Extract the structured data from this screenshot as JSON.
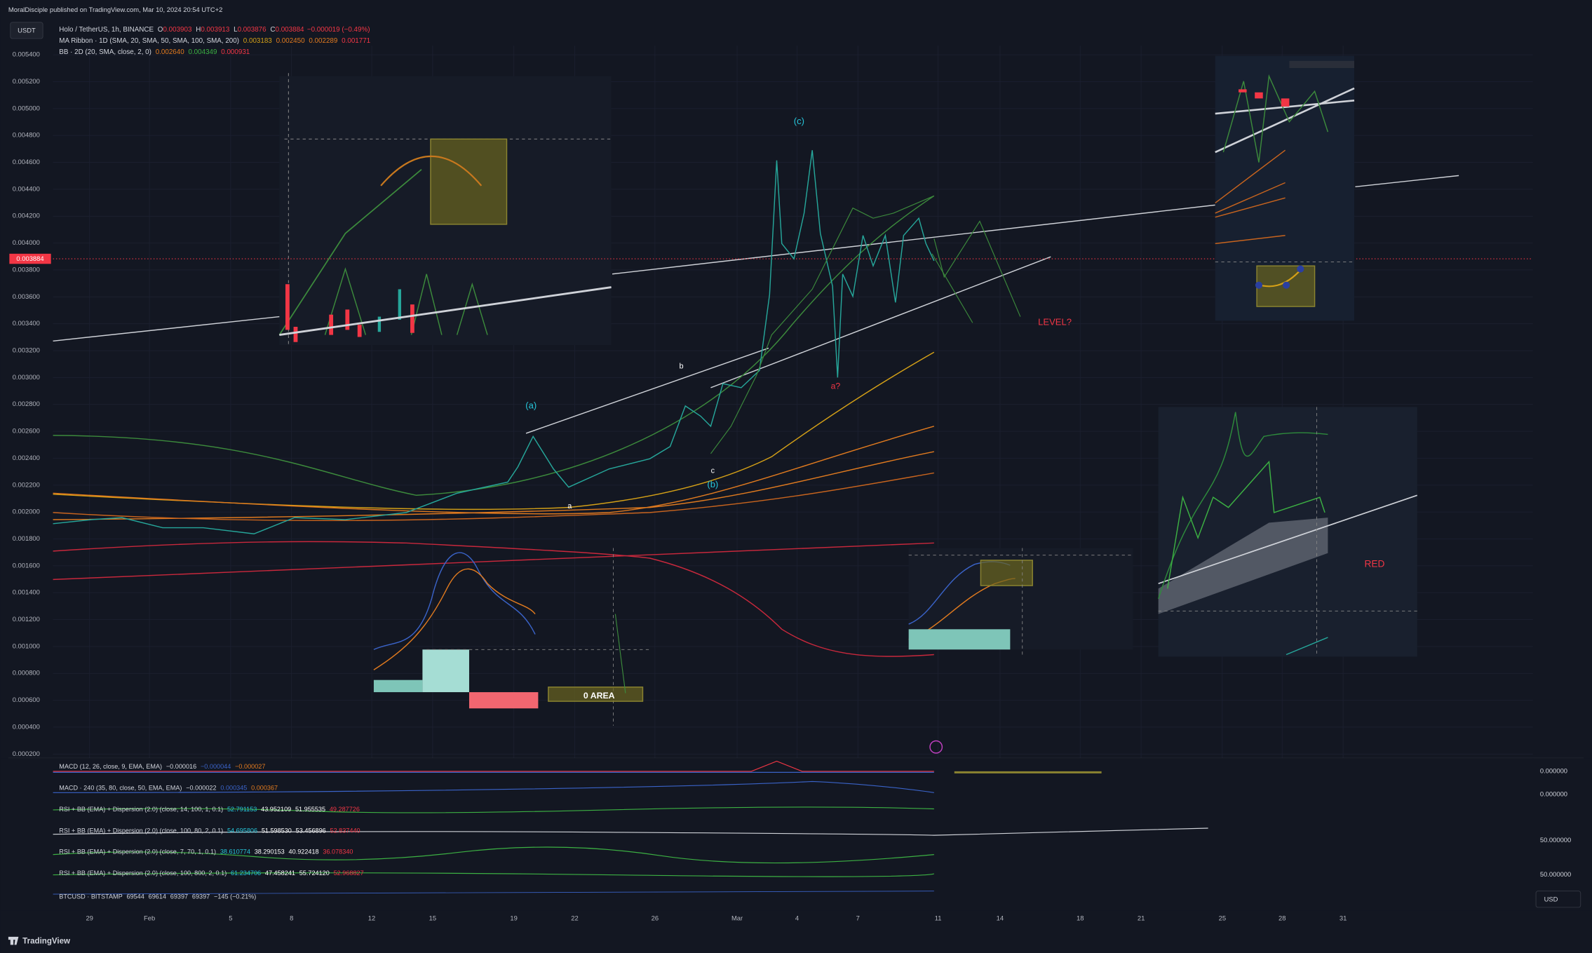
{
  "header": {
    "publisher": "MoralDisciple published on TradingView.com, Mar 10, 2024 20:54 UTC+2"
  },
  "toolbar": {
    "currency_button": "USDT"
  },
  "legend": {
    "symbol": "Holo / TetherUS, 1h, BINANCE",
    "ohlc": [
      {
        "label": "O",
        "value": "0.003903"
      },
      {
        "label": "H",
        "value": "0.003913"
      },
      {
        "label": "L",
        "value": "0.003876"
      },
      {
        "label": "C",
        "value": "0.003884"
      }
    ],
    "change": "−0.000019 (−0.49%)",
    "indicators": [
      {
        "name": "MA Ribbon · 1D (SMA, 20, SMA, 50, SMA, 100, SMA, 200)",
        "values": [
          "0.003183",
          "0.002450",
          "0.002289",
          "0.001771"
        ]
      },
      {
        "name": "BB · 2D (20, SMA, close, 2, 0)",
        "values": [
          "0.002640",
          "0.004349",
          "0.000931"
        ]
      }
    ]
  },
  "price_axis": {
    "ticks": [
      "0.005400",
      "0.005200",
      "0.005000",
      "0.004800",
      "0.004600",
      "0.004400",
      "0.004200",
      "0.004000",
      "0.003800",
      "0.003600",
      "0.003400",
      "0.003200",
      "0.003000",
      "0.002800",
      "0.002600",
      "0.002400",
      "0.002200",
      "0.002000",
      "0.001800",
      "0.001600",
      "0.001400",
      "0.001200",
      "0.001000",
      "0.000800",
      "0.000600",
      "0.000400",
      "0.000200"
    ],
    "last_price": "0.003884"
  },
  "annotations": [
    "(c)",
    "(a)",
    "b",
    "c",
    "(b)",
    "a",
    "a?",
    "LEVEL?",
    "0 AREA",
    "RED"
  ],
  "panes": [
    {
      "name": "MACD (12, 26, close, 9, EMA, EMA)",
      "values": [
        "−0.000016",
        "−0.000044",
        "−0.000027"
      ]
    },
    {
      "name": "MACD · 240 (35, 80, close, 50, EMA, EMA)",
      "values": [
        "−0.000022",
        "0.000345",
        "0.000367"
      ]
    },
    {
      "name": "RSI + BB (EMA) + Dispersion (2.0) (close, 14, 100, 1, 0.1)",
      "values": [
        "52.791153",
        "43.952109",
        "51.955535",
        "49.287726"
      ]
    },
    {
      "name": "RSI + BB (EMA) + Dispersion (2.0) (close, 100, 80, 2, 0.1)",
      "values": [
        "54.695806",
        "51.598530",
        "53.456896",
        "52.837440"
      ]
    },
    {
      "name": "RSI + BB (EMA) + Dispersion (2.0) (close, 7, 70, 1, 0.1)",
      "values": [
        "38.610774",
        "38.290153",
        "40.922418",
        "36.078340"
      ]
    },
    {
      "name": "RSI + BB (EMA) + Dispersion (2.0) (close, 100, 800, 2, 0.1)",
      "values": [
        "61.234706",
        "47.458241",
        "55.724120",
        "52.968827"
      ]
    },
    {
      "name": "BTCUSD · BITSTAMP",
      "values": [
        "69544",
        "69614",
        "69397",
        "69397",
        "−145 (−0.21%)"
      ]
    }
  ],
  "pane_scale_labels": [
    "0.000000",
    "0.000000",
    "50.000000",
    "50.000000"
  ],
  "time_axis": {
    "labels": [
      "29",
      "Feb",
      "5",
      "8",
      "12",
      "15",
      "19",
      "22",
      "26",
      "Mar",
      "4",
      "7",
      "11",
      "14",
      "18",
      "21",
      "25",
      "28",
      "31"
    ]
  },
  "currency_label": "USD",
  "footer": {
    "brand": "TradingView"
  }
}
